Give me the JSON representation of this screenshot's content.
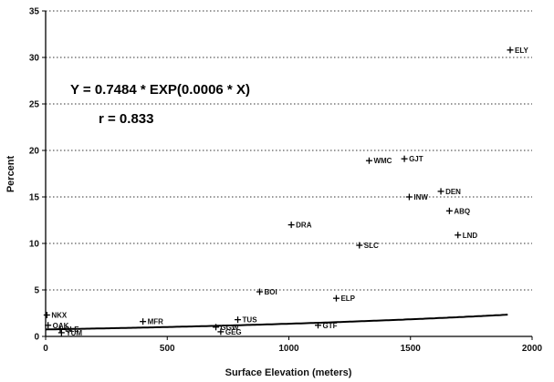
{
  "chart_data": {
    "type": "scatter",
    "xlabel": "Surface Elevation (meters)",
    "ylabel": "Percent",
    "xlim": [
      0,
      2000
    ],
    "ylim": [
      0,
      35
    ],
    "xticks": [
      "0",
      "500",
      "1000",
      "1500",
      "2000"
    ],
    "yticks": [
      "0",
      "5",
      "10",
      "15",
      "20",
      "25",
      "30",
      "35"
    ],
    "grid": "horizontal dotted",
    "annotations": {
      "equation": "Y = 0.7484 * EXP(0.0006 * X)",
      "r": "r = 0.833"
    },
    "fit": {
      "a": 0.7484,
      "b": 0.0006,
      "x_range": [
        0,
        1900
      ]
    },
    "points": [
      {
        "label": "NKX",
        "x": 5,
        "y": 2.3
      },
      {
        "label": "OAK",
        "x": 10,
        "y": 1.2
      },
      {
        "label": "SLE",
        "x": 60,
        "y": 0.8
      },
      {
        "label": "YUM",
        "x": 65,
        "y": 0.4
      },
      {
        "label": "MFR",
        "x": 400,
        "y": 1.6
      },
      {
        "label": "BOI",
        "x": 880,
        "y": 4.8
      },
      {
        "label": "GGW",
        "x": 700,
        "y": 1.0
      },
      {
        "label": "GEG",
        "x": 720,
        "y": 0.5
      },
      {
        "label": "TUS",
        "x": 790,
        "y": 1.8
      },
      {
        "label": "DRA",
        "x": 1010,
        "y": 12.0
      },
      {
        "label": "GTF",
        "x": 1120,
        "y": 1.2
      },
      {
        "label": "ELP",
        "x": 1195,
        "y": 4.1
      },
      {
        "label": "SLC",
        "x": 1290,
        "y": 9.8
      },
      {
        "label": "WMC",
        "x": 1330,
        "y": 18.9
      },
      {
        "label": "INW",
        "x": 1495,
        "y": 15.0
      },
      {
        "label": "GJT",
        "x": 1475,
        "y": 19.1
      },
      {
        "label": "DEN",
        "x": 1625,
        "y": 15.6
      },
      {
        "label": "ABQ",
        "x": 1660,
        "y": 13.5
      },
      {
        "label": "LND",
        "x": 1695,
        "y": 10.9
      },
      {
        "label": "ELY",
        "x": 1910,
        "y": 30.8
      }
    ]
  }
}
